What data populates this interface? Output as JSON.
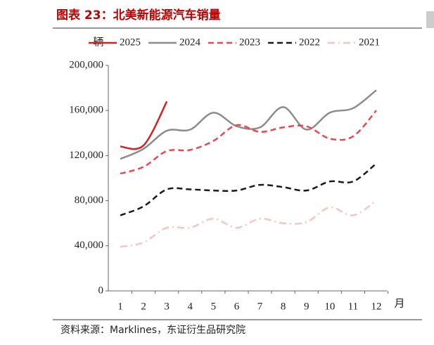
{
  "chart_data": {
    "type": "line",
    "title": "图表 23：北美新能源汽车销量",
    "y_label": "辆",
    "x_label": "月",
    "source": "资料来源：Marklines，东证衍生品研究院",
    "categories": [
      "1",
      "2",
      "3",
      "4",
      "5",
      "6",
      "7",
      "8",
      "9",
      "10",
      "11",
      "12"
    ],
    "series": [
      {
        "name": "2025",
        "color": "#d42020",
        "dash": "",
        "values": [
          128000,
          129000,
          168000,
          null,
          null,
          null,
          null,
          null,
          null,
          null,
          null,
          null
        ]
      },
      {
        "name": "2024",
        "color": "#8c8c8c",
        "dash": "",
        "values": [
          117000,
          126000,
          142000,
          143000,
          158000,
          146000,
          145000,
          163000,
          143000,
          158000,
          162000,
          178000
        ]
      },
      {
        "name": "2023",
        "color": "#e8484f",
        "dash": "8 5",
        "values": [
          104000,
          110000,
          124000,
          125000,
          133000,
          147000,
          141000,
          145000,
          146000,
          135000,
          137000,
          160000
        ]
      },
      {
        "name": "2022",
        "color": "#1a1a1a",
        "dash": "8 5",
        "values": [
          67000,
          75000,
          90000,
          90000,
          89000,
          89000,
          94000,
          92000,
          89000,
          97000,
          97000,
          113000
        ]
      },
      {
        "name": "2021",
        "color": "#f5c4c4",
        "dash": "10 5 2 5",
        "values": [
          39000,
          43000,
          56000,
          56000,
          64000,
          56000,
          64000,
          60000,
          61000,
          74000,
          67000,
          80000
        ]
      }
    ],
    "ylim": [
      0,
      200000
    ],
    "yticks": [
      0,
      {
        "value": 40000,
        "label": "40,000"
      },
      {
        "value": 80000,
        "label": "80,000"
      },
      {
        "value": 120000,
        "label": "120,000"
      },
      {
        "value": 160000,
        "label": "160,000"
      },
      {
        "value": 200000,
        "label": "200,000"
      }
    ]
  }
}
